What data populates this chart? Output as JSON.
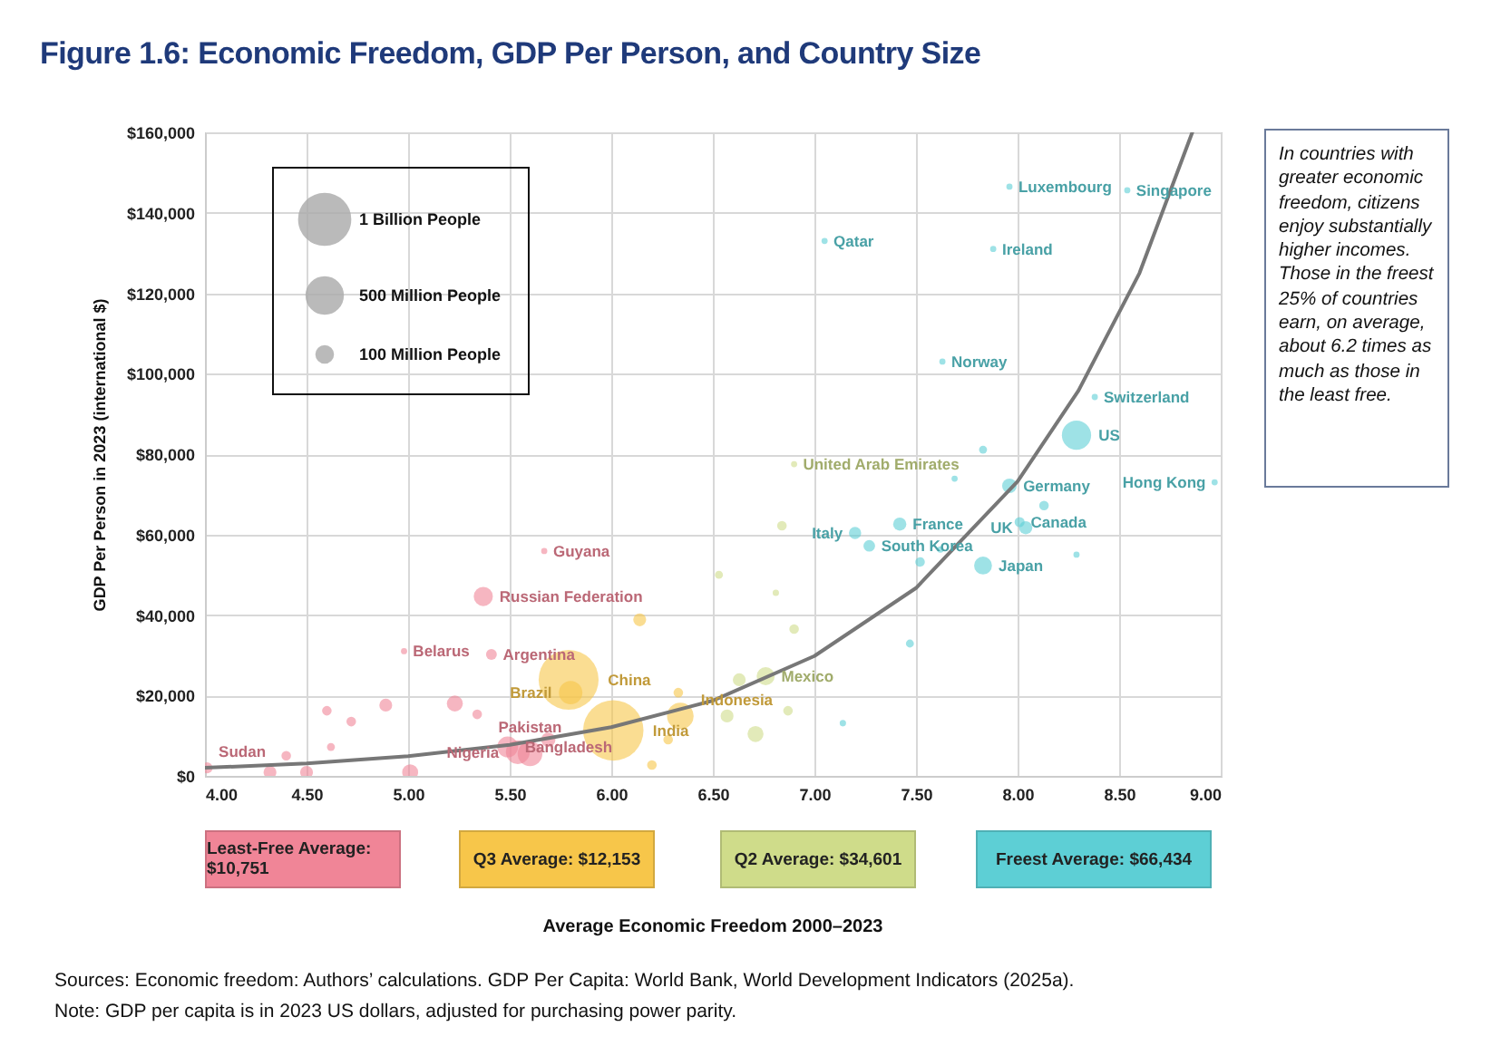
{
  "chart_data": {
    "type": "bubble",
    "title": "Figure 1.6: Economic Freedom, GDP Per Person, and Country Size",
    "ylabel": "GDP Per Person in 2023 (international $)",
    "xlim": [
      4,
      9
    ],
    "xticks": [
      {
        "value": 4,
        "label": "4.00"
      },
      {
        "value": 4.5,
        "label": "4.50"
      },
      {
        "value": 5,
        "label": "5.00"
      },
      {
        "value": 5.5,
        "label": "5.50"
      },
      {
        "value": 6,
        "label": "6.00"
      },
      {
        "value": 6.5,
        "label": "6.50"
      },
      {
        "value": 7,
        "label": "7.00"
      },
      {
        "value": 7.5,
        "label": "7.50"
      },
      {
        "value": 8,
        "label": "8.00"
      },
      {
        "value": 8.5,
        "label": "8.50"
      },
      {
        "value": 9,
        "label": "9.00"
      }
    ],
    "ylim": [
      0,
      160000
    ],
    "yticks": [
      {
        "value": 0,
        "label": "$0"
      },
      {
        "value": 20000,
        "label": "$20,000"
      },
      {
        "value": 40000,
        "label": "$40,000"
      },
      {
        "value": 60000,
        "label": "$60,000"
      },
      {
        "value": 80000,
        "label": "$80,000"
      },
      {
        "value": 100000,
        "label": "$100,000"
      },
      {
        "value": 120000,
        "label": "$120,000"
      },
      {
        "value": 140000,
        "label": "$140,000"
      },
      {
        "value": 160000,
        "label": "$160,000"
      }
    ],
    "grid": true,
    "legend": "bottom",
    "size_legend": [
      {
        "value": 1000,
        "label": "1 Billion People"
      },
      {
        "value": 500,
        "label": "500 Million People"
      },
      {
        "value": 100,
        "label": "100 Million People"
      }
    ],
    "series": [
      {
        "name": "Least-Free Average: $10,751",
        "color": "#f08597",
        "x": [
          4.01,
          4.98,
          5.41,
          5.37,
          5.67,
          5.49,
          5.54,
          5.6,
          4.6,
          4.72,
          4.89,
          5.23,
          5.34,
          4.62,
          4.4,
          4.32,
          4.5,
          5.01,
          5.69
        ],
        "values": [
          2000,
          31000,
          30200,
          44600,
          55900,
          7200,
          5900,
          5500,
          16200,
          13500,
          17600,
          18000,
          15300,
          7200,
          5000,
          900,
          900,
          900,
          9000
        ],
        "sizes": [
          48,
          15,
          46,
          144,
          15,
          171,
          223,
          240,
          36,
          36,
          65,
          100,
          36,
          25,
          36,
          65,
          65,
          100,
          80
        ]
      },
      {
        "name": "Q3 Average: $12,153",
        "color": "#f7c64a",
        "x": [
          5.79,
          5.8,
          6.01,
          6.34,
          6.14,
          6.33,
          6.2,
          6.28
        ],
        "values": [
          23900,
          20700,
          11300,
          14900,
          38800,
          20700,
          2700,
          9000
        ],
        "sizes": [
          1410,
          216,
          1430,
          278,
          65,
          36,
          36,
          36
        ]
      },
      {
        "name": "Q2 Average: $34,601",
        "color": "#cfdc8a",
        "x": [
          6.9,
          6.76,
          6.84,
          6.53,
          6.57,
          6.71,
          6.63,
          6.9,
          6.87,
          6.81
        ],
        "values": [
          77500,
          24800,
          62200,
          50000,
          14900,
          10400,
          23900,
          36500,
          16200,
          45500
        ],
        "sizes": [
          15,
          128,
          36,
          25,
          65,
          100,
          65,
          36,
          36,
          16
        ]
      },
      {
        "name": "Freest Average: $66,434",
        "color": "#5dcfd5",
        "x": [
          7.05,
          7.96,
          8.54,
          7.88,
          7.63,
          8.38,
          8.29,
          8.97,
          7.96,
          8.01,
          8.04,
          7.42,
          7.2,
          7.27,
          7.83,
          7.83,
          8.13,
          7.52,
          7.47,
          7.14,
          7.62,
          7.69,
          8.29
        ],
        "values": [
          133000,
          146500,
          145600,
          131000,
          103000,
          94200,
          84700,
          73000,
          72100,
          63100,
          61700,
          62600,
          60400,
          57200,
          52300,
          81100,
          67200,
          53200,
          32900,
          13100,
          56300,
          73900,
          55000
        ],
        "sizes": [
          15,
          15,
          15,
          15,
          15,
          15,
          335,
          15,
          84,
          40,
          68,
          68,
          59,
          52,
          125,
          25,
          36,
          36,
          25,
          16,
          16,
          15,
          15
        ]
      },
      {
        "type": "line",
        "color": "#777777",
        "x": [
          4,
          4.5,
          5,
          5.5,
          6,
          6.5,
          7,
          7.5,
          8,
          8.3,
          8.6,
          8.86
        ],
        "values": [
          2000,
          3100,
          4900,
          7700,
          12100,
          18700,
          29800,
          46700,
          73200,
          95800,
          125000,
          160000
        ]
      }
    ],
    "annotations": [
      "In countries with greater economic freedom, citizens enjoy substantially higher incomes. Those in the freest 25% of countries earn, on average, about 6.2 times as much as those in the least free.",
      "Average Economic Freedom 2000–2023",
      "Sources: Economic freedom: Authors’ calculations. GDP Per Capita: World Bank, World Development Indicators (2025a).",
      "Note: GDP per capita is in 2023 US dollars, adjusted for purchasing power parity.",
      {
        "text": "Sudan",
        "x": 4.01,
        "y": 2000
      },
      {
        "text": "Belarus",
        "x": 4.98,
        "y": 31000
      },
      {
        "text": "Argentina",
        "x": 5.41,
        "y": 30200
      },
      {
        "text": "Russian Federation",
        "x": 5.37,
        "y": 44600
      },
      {
        "text": "Guyana",
        "x": 5.67,
        "y": 55900
      },
      {
        "text": "Bangladesh",
        "x": 5.49,
        "y": 7200
      },
      {
        "text": "Nigeria",
        "x": 5.54,
        "y": 5900
      },
      {
        "text": "Pakistan",
        "x": 5.6,
        "y": 5500
      },
      {
        "text": "China",
        "x": 5.79,
        "y": 23900
      },
      {
        "text": "Brazil",
        "x": 5.8,
        "y": 20700
      },
      {
        "text": "India",
        "x": 6.01,
        "y": 11300
      },
      {
        "text": "Indonesia",
        "x": 6.34,
        "y": 14900
      },
      {
        "text": "United Arab Emirates",
        "x": 6.9,
        "y": 77500
      },
      {
        "text": "Mexico",
        "x": 6.76,
        "y": 24800
      },
      {
        "text": "Qatar",
        "x": 7.05,
        "y": 133000
      },
      {
        "text": "Luxembourg",
        "x": 7.96,
        "y": 146500
      },
      {
        "text": "Singapore",
        "x": 8.54,
        "y": 145600
      },
      {
        "text": "Ireland",
        "x": 7.88,
        "y": 131000
      },
      {
        "text": "Norway",
        "x": 7.63,
        "y": 103000
      },
      {
        "text": "Switzerland",
        "x": 8.38,
        "y": 94200
      },
      {
        "text": "US",
        "x": 8.29,
        "y": 84700
      },
      {
        "text": "Hong Kong",
        "x": 8.97,
        "y": 73000
      },
      {
        "text": "Germany",
        "x": 7.96,
        "y": 72100
      },
      {
        "text": "Canada",
        "x": 8.01,
        "y": 63100
      },
      {
        "text": "UK",
        "x": 8.04,
        "y": 61700
      },
      {
        "text": "France",
        "x": 7.42,
        "y": 62600
      },
      {
        "text": "Italy",
        "x": 7.2,
        "y": 60400
      },
      {
        "text": "South Korea",
        "x": 7.27,
        "y": 57200
      },
      {
        "text": "Japan",
        "x": 7.83,
        "y": 52300
      }
    ]
  }
}
